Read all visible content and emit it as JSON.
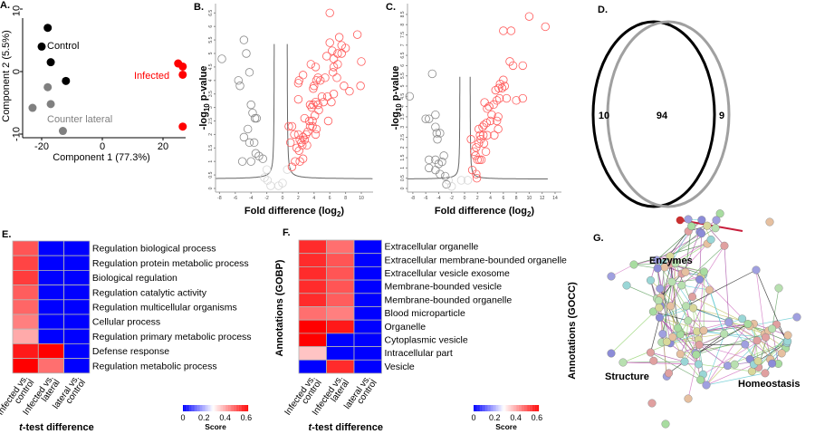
{
  "panels": {
    "A": "A.",
    "B": "B.",
    "C": "C.",
    "D": "D.",
    "E": "E.",
    "F": "F.",
    "G": "G."
  },
  "colors": {
    "infected": "#ff0000",
    "control": "#000000",
    "counter_lateral": "#808080",
    "score_low": "#0000ff",
    "score_mid": "#ffffff",
    "score_high": "#ff0000"
  },
  "chart_data": [
    {
      "id": "A",
      "type": "scatter",
      "xlabel": "Component 1 (77.3%)",
      "ylabel": "Component 2 (5.5%)",
      "xticks": [
        -20,
        0,
        20
      ],
      "yticks": [
        10,
        0,
        -10
      ],
      "series": [
        {
          "name": "Control",
          "color": "#000000",
          "points": [
            [
              -18,
              7
            ],
            [
              -20,
              4
            ],
            [
              -17,
              1.5
            ],
            [
              -12,
              -1.5
            ]
          ]
        },
        {
          "name": "Counter lateral",
          "color": "#808080",
          "points": [
            [
              -18,
              -2.5
            ],
            [
              -17,
              -5.2
            ],
            [
              -23,
              -5.8
            ],
            [
              -13,
              -9.5
            ]
          ]
        },
        {
          "name": "Infected",
          "color": "#ff0000",
          "points": [
            [
              25,
              1.3
            ],
            [
              26.5,
              0.8
            ],
            [
              26.5,
              -0.5
            ],
            [
              26.5,
              -8.8
            ]
          ]
        }
      ]
    },
    {
      "id": "B",
      "type": "scatter",
      "xlabel": "Fold difference (log",
      "xlabel_sub": "2",
      "ylabel": "-log",
      "ylabel_sub": "10",
      "ylabel_rest": " p-value",
      "xlim": [
        -8,
        10
      ],
      "ylim": [
        0,
        6.5
      ],
      "xticks": [
        -8,
        -6,
        -4,
        -2,
        0,
        2,
        4,
        6,
        8,
        10
      ],
      "yticks": [
        0,
        0.5,
        1,
        1.5,
        2,
        2.5,
        3,
        3.5,
        4,
        4.5,
        5,
        5.5,
        6,
        6.5
      ],
      "not_significant": [
        [
          -7.7,
          4.8
        ],
        [
          -4.9,
          5.5
        ],
        [
          -4.6,
          5.0
        ],
        [
          -4.2,
          4.3
        ],
        [
          -5.6,
          4.0
        ],
        [
          -5.4,
          3.8
        ],
        [
          -4.0,
          3.1
        ],
        [
          -3.8,
          2.8
        ],
        [
          -3.5,
          2.6
        ],
        [
          -3.3,
          2.6
        ],
        [
          -4.4,
          2.2
        ],
        [
          -4.9,
          1.9
        ],
        [
          -3.6,
          1.7
        ],
        [
          -4.2,
          1.7
        ],
        [
          -5.1,
          1.0
        ],
        [
          -4.0,
          1.0
        ],
        [
          -3.4,
          1.3
        ],
        [
          -3.0,
          1.2
        ],
        [
          -2.5,
          1.1
        ],
        [
          -2.0,
          0.7
        ],
        [
          -2.3,
          0.4
        ],
        [
          -1.9,
          0.3
        ],
        [
          -1.5,
          0.1
        ],
        [
          -0.5,
          0.1
        ],
        [
          0,
          0.2
        ],
        [
          0.6,
          0.7
        ]
      ],
      "significant": [
        [
          0.8,
          2.3
        ],
        [
          1.2,
          2.3
        ],
        [
          1.5,
          2.0
        ],
        [
          2.0,
          2.0
        ],
        [
          2.2,
          1.8
        ],
        [
          2.4,
          1.7
        ],
        [
          2.6,
          1.9
        ],
        [
          2.8,
          1.8
        ],
        [
          3.0,
          2.0
        ],
        [
          3.2,
          2.1
        ],
        [
          3.5,
          2.3
        ],
        [
          3.8,
          2.3
        ],
        [
          1.0,
          1.7
        ],
        [
          1.8,
          1.5
        ],
        [
          2.1,
          1.4
        ],
        [
          2.5,
          1.6
        ],
        [
          3.1,
          1.6
        ],
        [
          1.6,
          1.0
        ],
        [
          2.2,
          1.0
        ],
        [
          2.6,
          1.1
        ],
        [
          1.2,
          0.8
        ],
        [
          2.0,
          3.3
        ],
        [
          2.0,
          3.9
        ],
        [
          2.1,
          4.0
        ],
        [
          2.6,
          4.2
        ],
        [
          3.5,
          3.1
        ],
        [
          3.7,
          3.0
        ],
        [
          3.9,
          3.1
        ],
        [
          4.2,
          3.2
        ],
        [
          4.5,
          3.1
        ],
        [
          4.1,
          2.7
        ],
        [
          3.8,
          2.5
        ],
        [
          2.8,
          2.6
        ],
        [
          4.3,
          2.2
        ],
        [
          4.2,
          2.0
        ],
        [
          3.4,
          2.5
        ],
        [
          4.6,
          2.9
        ],
        [
          5.0,
          3.4
        ],
        [
          5.2,
          3.2
        ],
        [
          5.7,
          3.4
        ],
        [
          6.2,
          3.2
        ],
        [
          5.8,
          2.5
        ],
        [
          4.0,
          3.8
        ],
        [
          3.9,
          3.7
        ],
        [
          3.6,
          4.6
        ],
        [
          4.2,
          4.5
        ],
        [
          4.3,
          4.0
        ],
        [
          4.8,
          4.0
        ],
        [
          4.5,
          4.1
        ],
        [
          5.4,
          4.1
        ],
        [
          5.6,
          4.9
        ],
        [
          6.4,
          4.3
        ],
        [
          6.9,
          4.1
        ],
        [
          6.5,
          4.5
        ],
        [
          7.0,
          4.6
        ],
        [
          6.5,
          4.8
        ],
        [
          7.0,
          5.0
        ],
        [
          6.3,
          5.1
        ],
        [
          6.0,
          5.4
        ],
        [
          7.5,
          5.3
        ],
        [
          8.0,
          5.2
        ],
        [
          7.2,
          5.6
        ],
        [
          6.0,
          6.5
        ],
        [
          9.5,
          5.7
        ],
        [
          10.0,
          4.7
        ],
        [
          9.9,
          3.8
        ],
        [
          8.5,
          3.6
        ],
        [
          7.8,
          3.8
        ],
        [
          7.5,
          5.0
        ],
        [
          6.5,
          3.5
        ]
      ]
    },
    {
      "id": "C",
      "type": "scatter",
      "xlabel": "Fold difference (log",
      "xlabel_sub": "2",
      "ylabel": "-log",
      "ylabel_sub": "10",
      "ylabel_rest": " p-value",
      "xlim": [
        -8,
        14
      ],
      "ylim": [
        0,
        8.5
      ],
      "xticks": [
        -8,
        -6,
        -4,
        -2,
        0,
        2,
        4,
        6,
        8,
        10,
        12,
        14
      ],
      "yticks": [
        0,
        0.5,
        1,
        1.5,
        2,
        2.5,
        3,
        3.5,
        4,
        4.5,
        5,
        5.5,
        6,
        6.5,
        7,
        7.5,
        8,
        8.5
      ],
      "not_significant": [
        [
          -8.5,
          4.5
        ],
        [
          -5.0,
          5.6
        ],
        [
          -4.5,
          3.6
        ],
        [
          -6.0,
          3.4
        ],
        [
          -5.5,
          3.4
        ],
        [
          -4.5,
          3.0
        ],
        [
          -4.3,
          2.7
        ],
        [
          -3.8,
          2.7
        ],
        [
          -4.2,
          2.4
        ],
        [
          -5.5,
          1.4
        ],
        [
          -5.5,
          1.0
        ],
        [
          -4.5,
          1.4
        ],
        [
          -4.0,
          1.2
        ],
        [
          -3.5,
          1.3
        ],
        [
          -3.2,
          1.6
        ],
        [
          -4.5,
          0.9
        ],
        [
          -3.8,
          0.7
        ],
        [
          -3.0,
          0.6
        ],
        [
          -2.5,
          0.4
        ],
        [
          -2.8,
          0.2
        ],
        [
          -2.0,
          0.1
        ],
        [
          -0.5,
          0.4
        ],
        [
          0.5,
          0.4
        ]
      ],
      "significant": [
        [
          1.2,
          0.9
        ],
        [
          1.8,
          0.7
        ],
        [
          1.9,
          0.5
        ],
        [
          1.0,
          2.4
        ],
        [
          1.5,
          1.8
        ],
        [
          1.7,
          1.6
        ],
        [
          2.0,
          1.4
        ],
        [
          2.3,
          1.4
        ],
        [
          2.6,
          1.4
        ],
        [
          1.8,
          2.0
        ],
        [
          2.2,
          2.2
        ],
        [
          2.5,
          2.4
        ],
        [
          3.0,
          2.2
        ],
        [
          3.3,
          1.8
        ],
        [
          2.4,
          2.6
        ],
        [
          2.9,
          2.6
        ],
        [
          3.5,
          2.6
        ],
        [
          2.2,
          2.9
        ],
        [
          2.8,
          3.0
        ],
        [
          3.0,
          3.1
        ],
        [
          3.4,
          3.2
        ],
        [
          4.0,
          3.3
        ],
        [
          4.6,
          2.6
        ],
        [
          5.2,
          2.9
        ],
        [
          5.0,
          3.3
        ],
        [
          5.2,
          3.5
        ],
        [
          4.2,
          3.6
        ],
        [
          3.5,
          3.9
        ],
        [
          3.1,
          4.2
        ],
        [
          3.8,
          4.0
        ],
        [
          4.5,
          4.1
        ],
        [
          5.0,
          4.3
        ],
        [
          5.4,
          4.4
        ],
        [
          4.8,
          4.8
        ],
        [
          5.3,
          4.9
        ],
        [
          5.8,
          4.9
        ],
        [
          6.2,
          5.0
        ],
        [
          5.5,
          5.1
        ],
        [
          6.0,
          5.3
        ],
        [
          6.5,
          4.4
        ],
        [
          8.0,
          4.3
        ],
        [
          9.0,
          4.4
        ],
        [
          7.0,
          6.2
        ],
        [
          7.5,
          6.0
        ],
        [
          9.0,
          6.0
        ],
        [
          6.0,
          7.7
        ],
        [
          7.2,
          7.7
        ],
        [
          10.0,
          8.4
        ],
        [
          12.5,
          7.9
        ]
      ]
    },
    {
      "id": "D",
      "type": "venn",
      "left_only": "10",
      "overlap": "94",
      "right_only": "9",
      "sets": [
        {
          "color": "#000000"
        },
        {
          "color": "#a0a0a0"
        }
      ]
    },
    {
      "id": "E",
      "type": "heatmap",
      "xlabel": "t-test difference",
      "xlabel_italic": "t",
      "xlabel_rest": "-test difference",
      "columns": [
        [
          "Infected vs.",
          "control"
        ],
        [
          "Infected vs.",
          "lateral"
        ],
        [
          "lateral vs.",
          "control"
        ]
      ],
      "rows": [
        "Regulation biological process",
        "Regulation protein metabolic process",
        "Biological regulation",
        "Regulation catalytic activity",
        "Regulation multicellular organisms",
        "Cellular process",
        "Regulation primary metabolic process",
        "Defense response",
        "Regulation metabolic process"
      ],
      "values": [
        [
          0.45,
          0,
          0
        ],
        [
          0.47,
          0,
          0
        ],
        [
          0.48,
          0,
          0
        ],
        [
          0.44,
          0,
          0
        ],
        [
          0.43,
          0,
          0
        ],
        [
          0.4,
          0,
          0
        ],
        [
          0.35,
          0,
          0
        ],
        [
          0.52,
          0.6,
          0
        ],
        [
          0.55,
          0.42,
          0
        ]
      ],
      "colorbar": {
        "label": "Score",
        "ticks": [
          "0",
          "0.2",
          "0.4",
          "0.6"
        ],
        "range": [
          0,
          0.6
        ]
      }
    },
    {
      "id": "F",
      "type": "heatmap",
      "ylabel": "Annotations (GOBP)",
      "xlabel_italic": "t",
      "xlabel_rest": "-test difference",
      "columns": [
        [
          "Infected vs.",
          "control"
        ],
        [
          "Infected vs.",
          "lateral"
        ],
        [
          "lateral vs.",
          "control"
        ]
      ],
      "rows": [
        "Extracellular organelle",
        "Extracellular membrane-bounded organelle",
        "Extracellular vesicle exosome",
        "Membrane-bounded vesicle",
        "Membrane-bounded organelle",
        "Blood microparticle",
        "Organelle",
        "Cytoplasmic vesicle",
        "Intracellular part",
        "Vesicle"
      ],
      "values": [
        [
          0.5,
          0.42,
          0
        ],
        [
          0.5,
          0.45,
          0
        ],
        [
          0.5,
          0.45,
          0
        ],
        [
          0.5,
          0.45,
          0
        ],
        [
          0.5,
          0.44,
          0
        ],
        [
          0.42,
          0.4,
          0
        ],
        [
          0.6,
          0.52,
          0
        ],
        [
          0.6,
          0,
          0
        ],
        [
          0.32,
          0,
          0
        ],
        [
          0,
          0.5,
          0
        ]
      ],
      "colorbar": {
        "label": "Score",
        "ticks": [
          "0",
          "0.2",
          "0.4",
          "0.6"
        ],
        "range": [
          0,
          0.6
        ]
      }
    },
    {
      "id": "G",
      "type": "network",
      "ylabel": "Annotations (GOCC)",
      "clusters": [
        "Enzymes",
        "Structure",
        "Homeostasis"
      ]
    }
  ]
}
